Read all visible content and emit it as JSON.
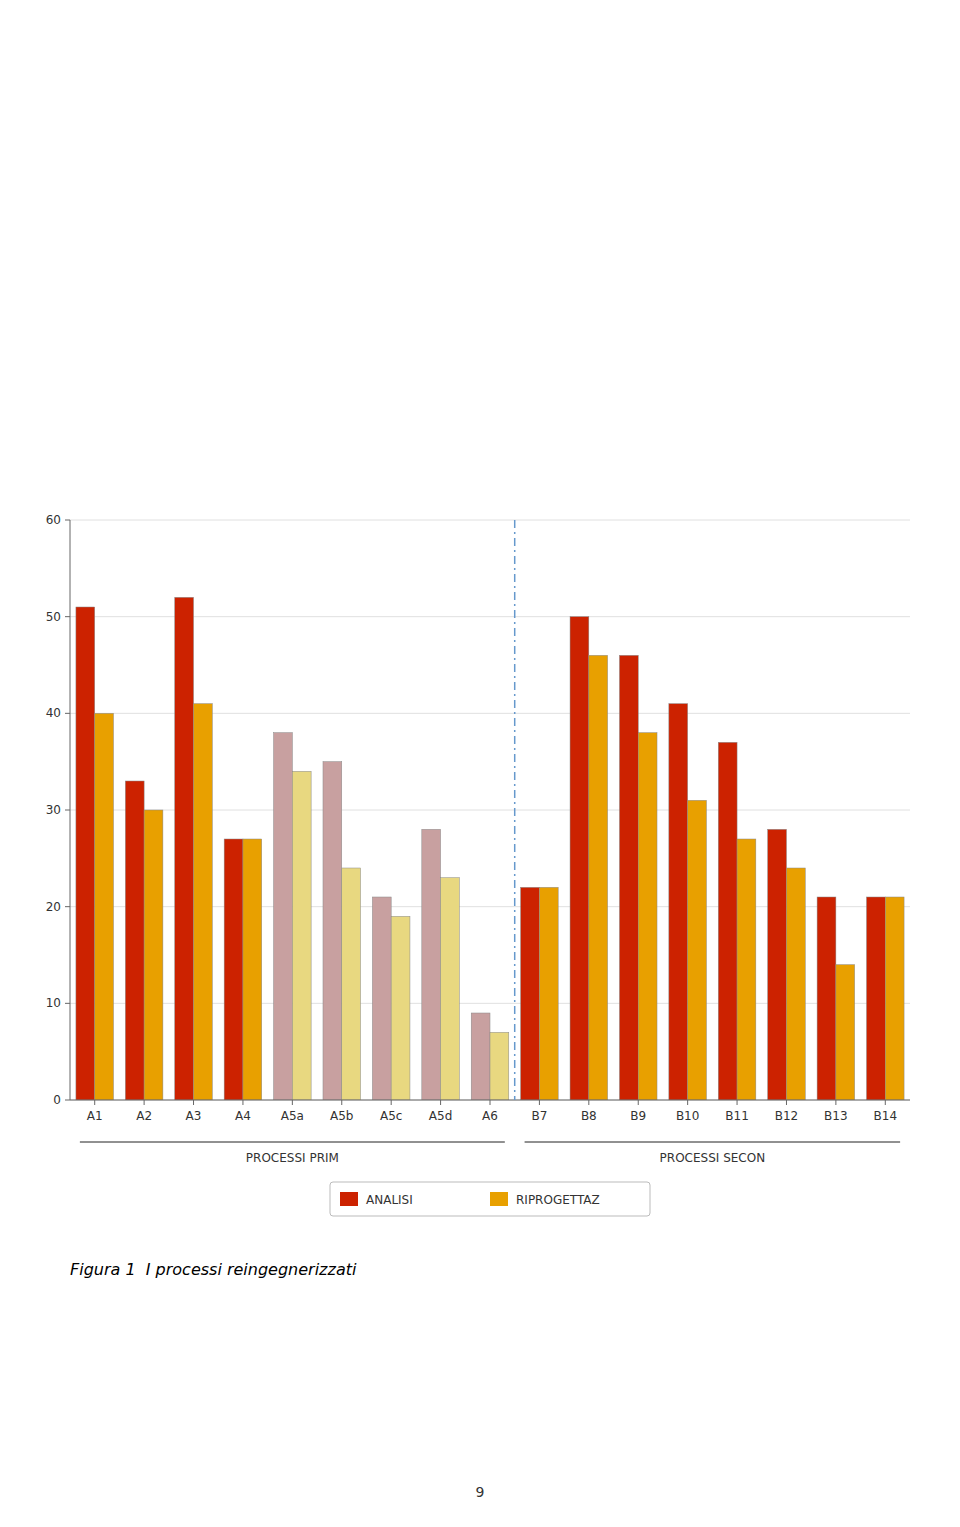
{
  "chart_data": {
    "type": "bar",
    "title": "Figura 1  I processi reingegnerizzati",
    "categories": [
      "A1",
      "A2",
      "A3",
      "A4",
      "A5a",
      "A5b",
      "A5c",
      "A5d",
      "A6",
      "B7",
      "B8",
      "B9",
      "B10",
      "B11",
      "B12",
      "B13",
      "B14"
    ],
    "series": [
      {
        "name": "ANALISI",
        "color": "#CC2200",
        "colors": [
          "#CC2200",
          "#CC2200",
          "#CC2200",
          "#CC2200",
          "#C8A0A0",
          "#C8A0A0",
          "#C8A0A0",
          "#C8A0A0",
          "#C8A0A0",
          "#CC2200",
          "#CC2200",
          "#CC2200",
          "#CC2200",
          "#CC2200",
          "#CC2200",
          "#CC2200",
          "#CC2200"
        ],
        "values": [
          51,
          33,
          52,
          27,
          38,
          35,
          21,
          28,
          9,
          22,
          50,
          46,
          41,
          37,
          28,
          21,
          21
        ]
      },
      {
        "name": "RIPROGETTAZ",
        "color": "#E8A000",
        "colors": [
          "#E8A000",
          "#E8A000",
          "#E8A000",
          "#E8A000",
          "#E8D880",
          "#E8D880",
          "#E8D880",
          "#E8D880",
          "#E8D880",
          "#E8A000",
          "#E8A000",
          "#E8A000",
          "#E8A000",
          "#E8A000",
          "#E8A000",
          "#E8A000",
          "#E8A000"
        ],
        "values": [
          40,
          30,
          41,
          27,
          34,
          24,
          19,
          23,
          7,
          22,
          46,
          38,
          31,
          27,
          24,
          14,
          21
        ]
      }
    ],
    "annotations": [
      {
        "text": "PROCESSI PRIM",
        "from": "A1",
        "to": "A6"
      },
      {
        "text": "PROCESSI SECON",
        "from": "B7",
        "to": "B14"
      },
      {
        "text": "9"
      }
    ],
    "ylim": [
      0,
      60
    ],
    "yticks": [
      0,
      10,
      20,
      30,
      40,
      50,
      60
    ],
    "grid": true,
    "legend": "bottom"
  }
}
